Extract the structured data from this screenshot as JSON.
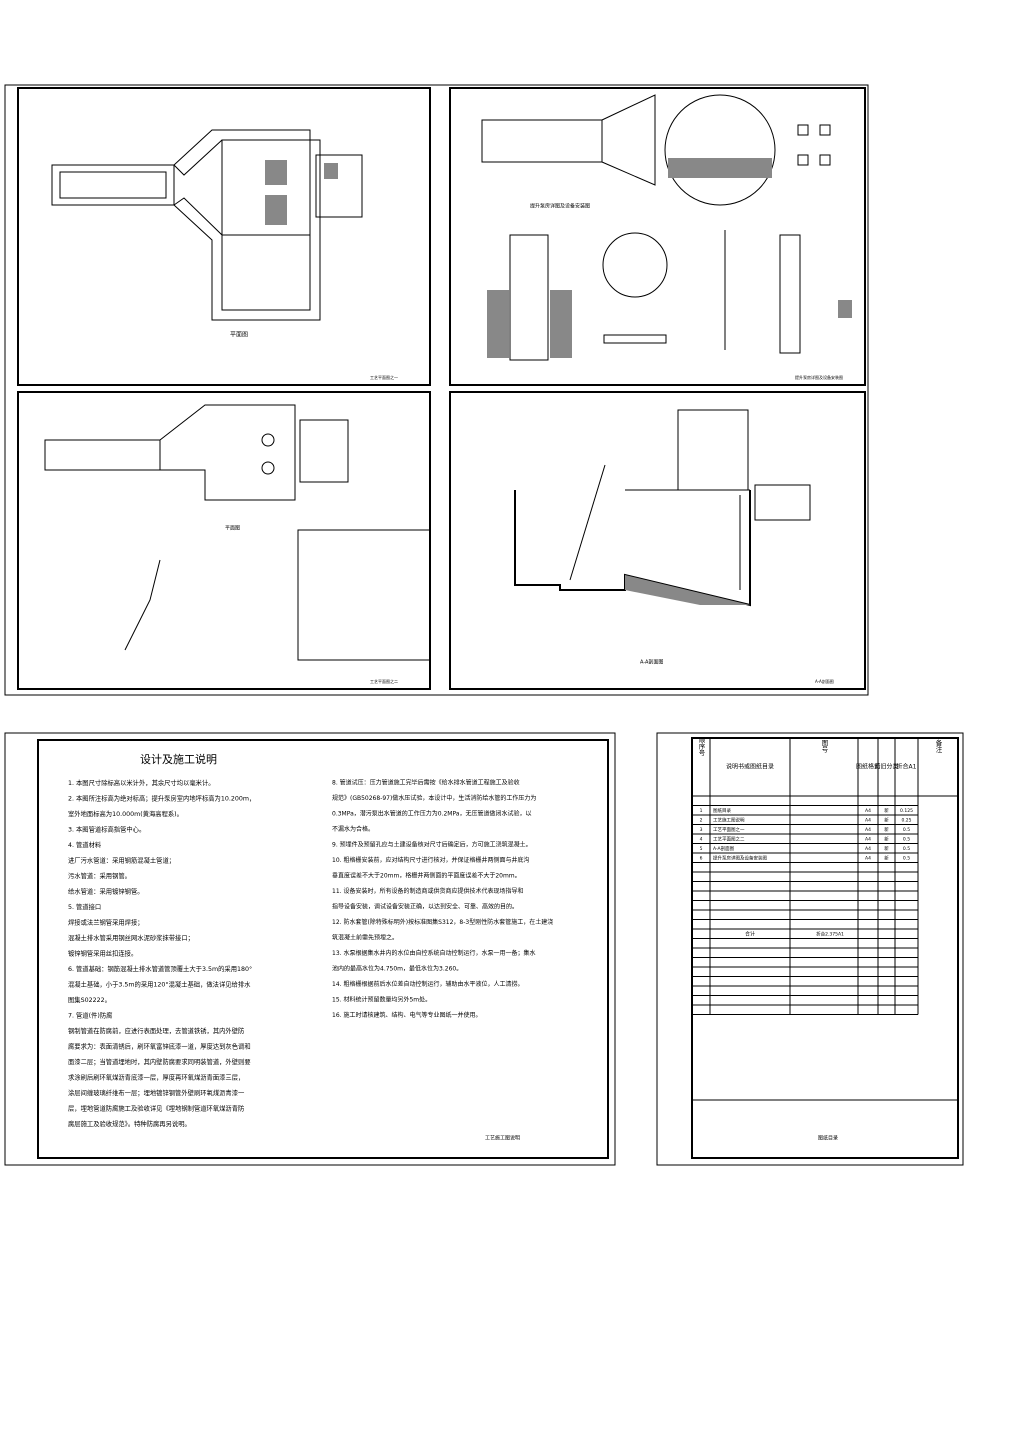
{
  "panels": [
    {
      "title": "平面图",
      "sheet": "工艺平面图之一"
    },
    {
      "title": "提升泵房详图及设备安装图",
      "sheet": "提升泵房详图及设备安装图"
    },
    {
      "title": "平面图",
      "sheet": "工艺平面图之二"
    },
    {
      "title": "A-A剖面图",
      "sheet": "A-A剖面图"
    }
  ],
  "notes": {
    "title": "设计及施工说明",
    "left": [
      "1. 本图尺寸除标高以米计外，其余尺寸均以毫米计。",
      "2. 本图所注标高为绝对标高；提升泵房室内地坪标高为10.200m，",
      "   室外地面标高为10.000m(黄海高程系)。",
      "3. 本图管道标高指管中心。",
      "4. 管道材料",
      "   进厂污水管道：采用钢筋混凝土管道；",
      "   污水管道：采用钢管。",
      "   给水管道：采用镀锌钢管。",
      "5. 管道接口",
      "   焊接或法兰钢管采用焊接；",
      "   混凝土排水管采用钢丝网水泥砂浆抹带接口；",
      "   镀锌钢管采用丝扣连接。",
      "6. 管道基础：钢筋混凝土排水管道管顶覆土大于3.5m的采用180°",
      "   混凝土基础，小于3.5m的采用120°混凝土基础，做法详见给排水",
      "   图集S02222。",
      "7. 管道(件)防腐",
      "   钢制管道在防腐前，应进行表面处理，去管道铁锈，其内外壁防",
      "   腐要求为：表面清锈后，刷环氧富锌底漆一道，厚度达到灰色调和",
      "   面漆二层；当管道埋地时，其内壁防腐要求同明装管道，外壁则要",
      "   求涂刷后刷环氧煤沥青底漆一层，厚度再环氧煤沥青面漆三层，",
      "   涂层间缠玻璃纤维布一层；埋地镀锌钢管外壁刷环氧煤沥青漆一",
      "   层，埋地管道防腐施工及验收详见《埋地钢制管道环氧煤沥青防",
      "   腐层施工及验收规范》。特种防腐再另说明。"
    ],
    "right": [
      "8. 管道试压：压力管道施工完毕后需按《给水排水管道工程施工及验收",
      "   规范》(GB50268-97)做水压试验，本设计中，生活消防给水管的工作压力为",
      "   0.3MPa，潜污泵出水管道的工作压力为0.2MPa，无压管道做闭水试验，以",
      "   不漏水为合格。",
      "9. 预埋件及预留孔应与土建设备核对尺寸后确定后，方可施工浇筑混凝土。",
      "10. 粗格栅安装前，应对结构尺寸进行核对，并保证格栅井两侧面与井底沟",
      "    垂直度误差不大于20mm，格栅井两侧面的平面度误差不大于20mm。",
      "11. 设备安装时，所有设备的制造商或供货商应提供技术代表现场指导和",
      "    指导设备安装，调试设备安装正确，以达到安全、可靠、高效的目的。",
      "12. 防水套管(除特殊标明外)按标准图集S312，8-3型刚性防水套管施工，在土建浇",
      "    筑混凝土前需先预埋之。",
      "13. 水泵根据集水井内的水位由自控系统自动控制运行，水泵一用一备；集水",
      "    池内的最高水位为4.750m，最低水位为3.260。",
      "14. 粗格栅根据前后水位差自动控制运行，辅助由水平液位，人工清捞。",
      "15. 材料统计预留数量均另外5m处。",
      "16. 施工时请核建筑、结构、电气等专业图纸一并使用。"
    ],
    "sheet": "工艺施工图说明"
  },
  "index": {
    "headers": [
      "顺序号",
      "说明书或图纸目录",
      "图号",
      "图纸格式",
      "新旧分类",
      "折合A1",
      "备注"
    ],
    "rows": [
      [
        "1",
        "图纸目录",
        "",
        "A4",
        "新",
        "0.125",
        ""
      ],
      [
        "2",
        "工艺施工图说明",
        "",
        "A4",
        "新",
        "0.25",
        ""
      ],
      [
        "3",
        "工艺平面图之一",
        "",
        "A4",
        "新",
        "0.5",
        ""
      ],
      [
        "4",
        "工艺平面图之二",
        "",
        "A4",
        "新",
        "0.5",
        ""
      ],
      [
        "5",
        "A-A剖面图",
        "",
        "A4",
        "新",
        "0.5",
        ""
      ],
      [
        "6",
        "提升泵房详图及设备安装图",
        "",
        "A4",
        "新",
        "0.5",
        ""
      ]
    ],
    "total": "合计",
    "total_value": "折合2.375A1",
    "sheet": "图纸目录"
  }
}
